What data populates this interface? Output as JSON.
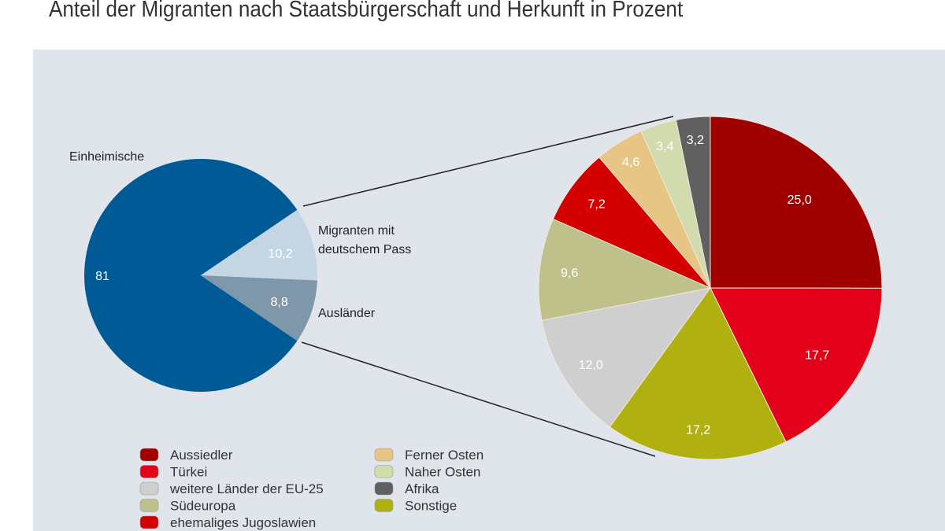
{
  "chart_data": [
    {
      "type": "pie",
      "title": "Anteil der Migranten nach Staatsbürgerschaft und Herkunft in Prozent",
      "slices": [
        {
          "label": "Einheimische",
          "value": 81,
          "value_label": "81",
          "color": "#005a96"
        },
        {
          "label": "Migranten mit deutschem Pass",
          "value": 10.2,
          "value_label": "10,2",
          "color": "#c4d6e4"
        },
        {
          "label": "Ausländer",
          "value": 8.8,
          "value_label": "8,8",
          "color": "#7f97ab"
        }
      ]
    },
    {
      "type": "pie",
      "slices": [
        {
          "label": "Aussiedler",
          "value": 25.0,
          "value_label": "25,0",
          "color": "#a00000"
        },
        {
          "label": "Türkei",
          "value": 17.7,
          "value_label": "17,7",
          "color": "#e2001a"
        },
        {
          "label": "Sonstige",
          "value": 17.2,
          "value_label": "17,2",
          "color": "#b0b010"
        },
        {
          "label": "weitere Länder der EU-25",
          "value": 12.0,
          "value_label": "12,0",
          "color": "#cfcfcf"
        },
        {
          "label": "Südeuropa",
          "value": 9.6,
          "value_label": "9,6",
          "color": "#bec28a"
        },
        {
          "label": "ehemaliges Jugoslawien",
          "value": 7.2,
          "value_label": "7,2",
          "color": "#d40000"
        },
        {
          "label": "Ferner Osten",
          "value": 4.6,
          "value_label": "4,6",
          "color": "#e6c585"
        },
        {
          "label": "Naher Osten",
          "value": 3.4,
          "value_label": "3,4",
          "color": "#d2dbad"
        },
        {
          "label": "Afrika",
          "value": 3.2,
          "value_label": "3,2",
          "color": "#606060"
        }
      ],
      "legend": {
        "placement": "bottom-left",
        "columns": [
          [
            "Aussiedler",
            "Türkei",
            "weitere Länder der EU-25",
            "Südeuropa",
            "ehemaliges Jugoslawien"
          ],
          [
            "Ferner Osten",
            "Naher Osten",
            "Afrika",
            "Sonstige"
          ]
        ]
      }
    }
  ],
  "labels": {
    "einheimische": "Einheimische",
    "migranten_line1": "Migranten mit",
    "migranten_line2": "deutschem Pass",
    "auslaender": "Ausländer"
  }
}
